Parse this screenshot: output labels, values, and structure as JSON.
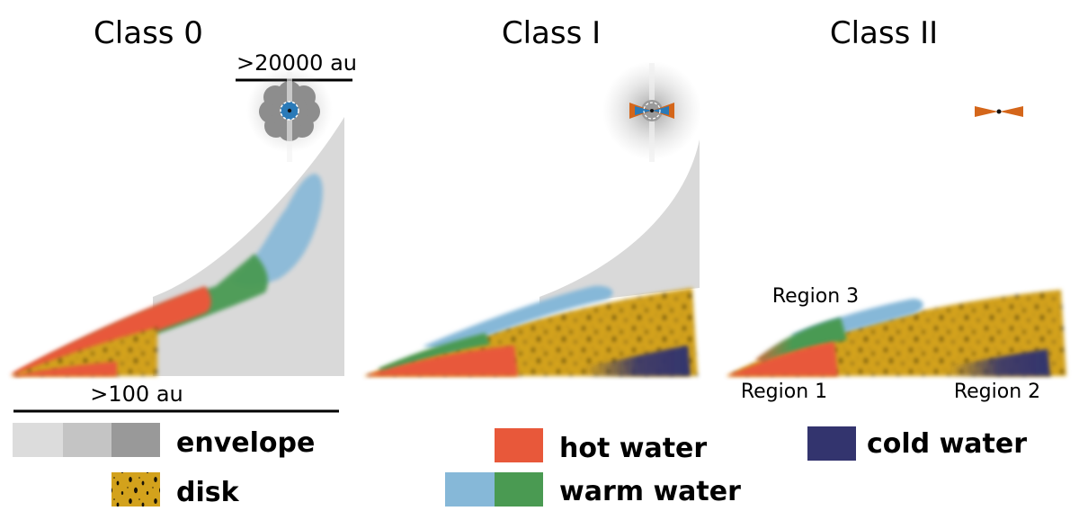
{
  "panels": [
    {
      "title": "Class 0",
      "envelope_scale": ">20000 au",
      "disk_scale": ">100 au"
    },
    {
      "title": "Class I"
    },
    {
      "title": "Class II",
      "regions": [
        "Region 3",
        "Region 1",
        "Region 2"
      ]
    }
  ],
  "legend": {
    "envelope": "envelope",
    "disk": "disk",
    "hot_water": "hot water",
    "warm_water": "warm water",
    "cold_water": "cold water"
  },
  "colors": {
    "hot_water": "#e8583a",
    "warm_water_light": "#86b8d8",
    "warm_water_green": "#4a9a52",
    "cold_water": "#33346e",
    "disk": "#d3a21c",
    "envelope_light": "#dcdcdc",
    "envelope_mid": "#c4c4c4",
    "envelope_dark": "#999999",
    "protostar_blue": "#2a7ab8",
    "outflow_orange": "#d4661a"
  }
}
